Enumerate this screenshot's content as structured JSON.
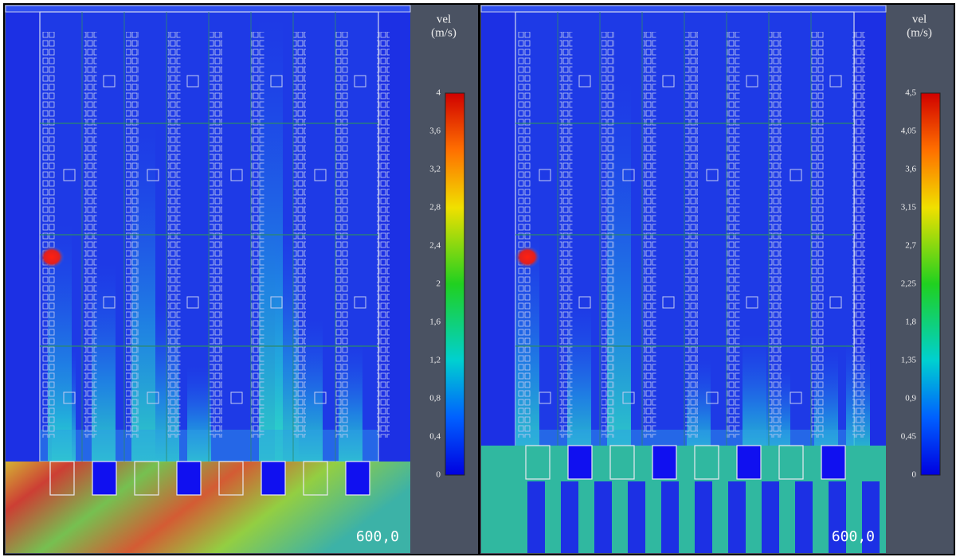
{
  "panels": [
    {
      "colorbar": {
        "title": [
          "vel",
          "(m/s)"
        ],
        "ticks": [
          "4",
          "3,6",
          "3,2",
          "2,8",
          "2,4",
          "2",
          "1,6",
          "1,2",
          "0,8",
          "0,4",
          "0"
        ]
      },
      "time": "600,0"
    },
    {
      "colorbar": {
        "title": [
          "vel",
          "(m/s)"
        ],
        "ticks": [
          "4,5",
          "4,05",
          "3,6",
          "3,15",
          "2,7",
          "2,25",
          "1,8",
          "1,35",
          "0,9",
          "0,45",
          "0"
        ]
      },
      "time": "600,0"
    }
  ]
}
